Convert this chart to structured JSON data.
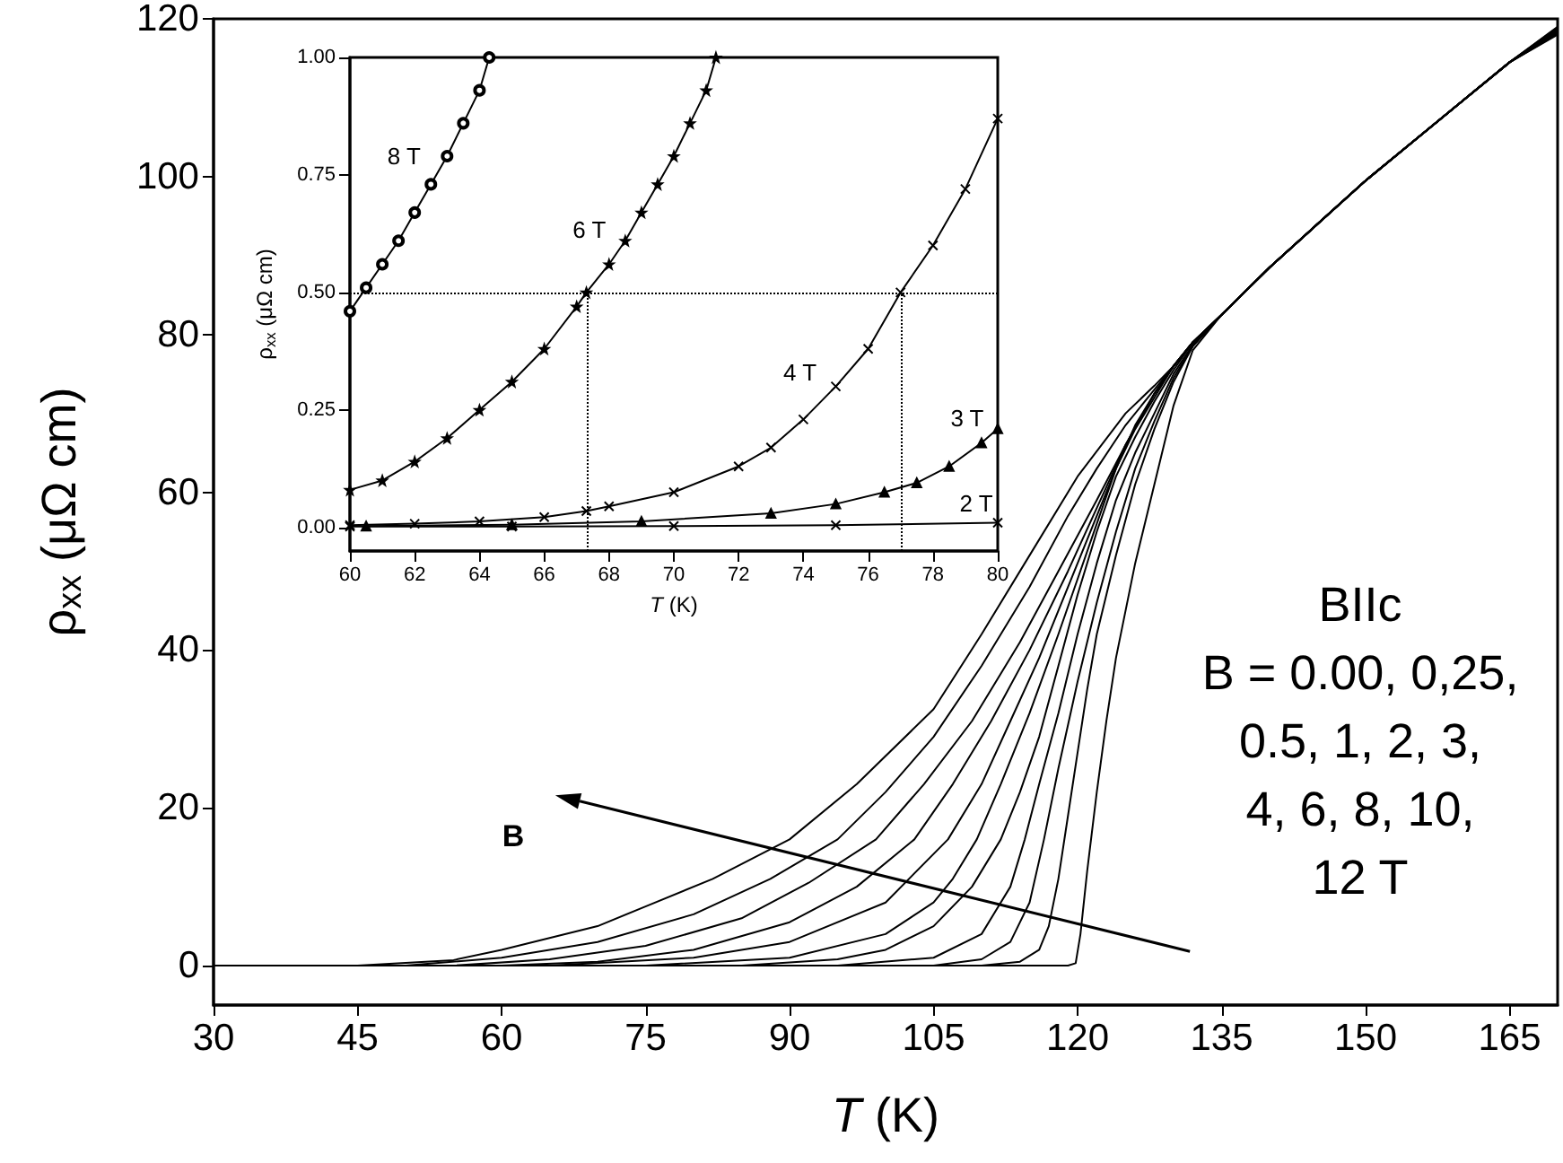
{
  "chart_data": [
    {
      "type": "line",
      "xlabel": "T (K)",
      "ylabel": "ρ$_{xx}$ (μΩ cm)",
      "xlim": [
        30,
        170
      ],
      "ylim": [
        -5,
        120
      ],
      "xticks": [
        30,
        45,
        60,
        75,
        90,
        105,
        120,
        135,
        150,
        165
      ],
      "yticks": [
        0,
        20,
        40,
        60,
        80,
        100,
        120
      ],
      "grid": false,
      "legend": false,
      "marker": "none",
      "line_style": "solid",
      "annotations": [
        "BIIc\nB = 0.00, 0,25,\n0.5, 1, 2, 3,\n4, 6, 8, 10,\n12 T",
        "B"
      ],
      "series": [
        {
          "color": "#000000",
          "x": [
            30,
            119,
            119.8,
            120.3,
            121,
            122,
            123,
            124,
            125,
            126,
            128,
            130,
            132,
            135,
            140,
            145,
            150,
            155,
            160,
            165,
            170
          ],
          "values": [
            0,
            0,
            0.3,
            4,
            12,
            22,
            31,
            39,
            45,
            51,
            61,
            71,
            78,
            82.5,
            88.5,
            94,
            99.5,
            104.5,
            109.5,
            114.5,
            118.5
          ]
        },
        {
          "color": "#000000",
          "x": [
            80,
            110,
            114,
            116,
            117,
            118,
            119,
            120,
            121,
            122,
            124,
            126,
            128,
            130,
            132,
            135,
            140,
            145,
            150,
            155,
            160,
            165,
            170
          ],
          "values": [
            0,
            0,
            0.5,
            2,
            5,
            11,
            19,
            27,
            35,
            42,
            52,
            61,
            68,
            74,
            78.5,
            82.5,
            88.5,
            94,
            99.5,
            104.5,
            109.5,
            114.5,
            118.4
          ]
        },
        {
          "color": "#000000",
          "x": [
            75,
            105,
            110,
            113,
            115,
            116.5,
            118,
            120,
            122,
            124,
            126,
            128,
            130,
            132,
            135,
            140,
            145,
            150,
            155,
            160,
            165,
            170
          ],
          "values": [
            0,
            0,
            0.8,
            3,
            8,
            16,
            25,
            36,
            46,
            55,
            63,
            69,
            74.5,
            78.5,
            82.5,
            88.5,
            94,
            99.5,
            104.5,
            109.5,
            114.5,
            118.3
          ]
        },
        {
          "color": "#000000",
          "x": [
            70,
            95,
            105,
            110,
            113,
            114.5,
            116,
            118,
            120,
            122,
            124,
            126,
            128,
            130,
            132,
            135,
            140,
            145,
            150,
            155,
            160,
            165,
            170
          ],
          "values": [
            0,
            0,
            1,
            4,
            10,
            16,
            23,
            32,
            42,
            51,
            59,
            65,
            70,
            75,
            78.7,
            82.5,
            88.5,
            94,
            99.5,
            104.5,
            109.5,
            114.5,
            118.2
          ]
        },
        {
          "color": "#000000",
          "x": [
            65,
            85,
            95,
            100,
            105,
            109,
            112,
            114,
            116,
            118,
            120,
            122,
            124,
            126,
            128,
            130,
            132,
            135,
            140,
            145,
            150,
            155,
            160,
            165,
            170
          ],
          "values": [
            0,
            0,
            0.8,
            2,
            5,
            10,
            16,
            22,
            29,
            38,
            47,
            55,
            62,
            67,
            71.5,
            75.5,
            79,
            82.5,
            88.5,
            94,
            99.5,
            104.5,
            109.5,
            114.5,
            118.1
          ]
        },
        {
          "color": "#000000",
          "x": [
            60,
            75,
            90,
            100,
            105,
            107,
            109.5,
            112,
            115,
            118,
            120,
            122,
            124,
            126,
            128,
            130,
            132,
            135,
            140,
            145,
            150,
            155,
            160,
            165,
            170
          ],
          "values": [
            0,
            0,
            1,
            4,
            8,
            11,
            16,
            23,
            32,
            42,
            49,
            56,
            63,
            68,
            72,
            76,
            79,
            82.5,
            88.5,
            94,
            99.5,
            104.5,
            109.5,
            114.5,
            118
          ]
        },
        {
          "color": "#000000",
          "x": [
            55,
            65,
            80,
            90,
            100,
            106.5,
            110,
            113,
            116,
            119,
            122,
            124,
            126,
            128,
            130,
            132,
            135,
            140,
            145,
            150,
            155,
            160,
            165,
            170
          ],
          "values": [
            0,
            0,
            1,
            3,
            8,
            16,
            23,
            31,
            39,
            48,
            57,
            63,
            68.5,
            72.5,
            76,
            79,
            82.5,
            88.5,
            94,
            99.5,
            104.5,
            109.5,
            114.5,
            118.6
          ]
        },
        {
          "color": "#000000",
          "x": [
            50,
            60,
            70,
            80,
            90,
            97,
            103,
            107,
            111,
            115,
            119,
            122,
            125,
            128,
            130,
            132,
            135,
            140,
            145,
            150,
            155,
            160,
            165,
            170
          ],
          "values": [
            0,
            0,
            0.5,
            2,
            5.5,
            10,
            16,
            23,
            31,
            40,
            50,
            58,
            66,
            72.5,
            76,
            79,
            82.5,
            88.5,
            94,
            99.5,
            104.5,
            109.5,
            114.5,
            118.7
          ]
        },
        {
          "color": "#000000",
          "x": [
            45,
            55,
            65,
            75,
            85,
            92,
            99,
            104,
            109,
            114,
            118,
            122,
            125,
            128,
            130,
            132,
            135,
            140,
            145,
            150,
            155,
            160,
            165,
            170
          ],
          "values": [
            0,
            0,
            0.8,
            2.5,
            6,
            10.5,
            16,
            23,
            31,
            41,
            50,
            59,
            66,
            72.5,
            76,
            79,
            82.5,
            88.5,
            94,
            99.5,
            104.5,
            109.5,
            114.5,
            118.8
          ]
        },
        {
          "color": "#000000",
          "x": [
            40,
            50,
            60,
            70,
            80,
            88,
            95,
            100,
            105,
            110,
            115,
            119,
            122,
            125,
            128,
            130,
            132,
            135,
            140,
            145,
            150,
            155,
            160,
            165,
            170
          ],
          "values": [
            0,
            0,
            1,
            3,
            6.5,
            11,
            16,
            22,
            29,
            38,
            48,
            57,
            63,
            68.5,
            73,
            76,
            79,
            82.5,
            88.5,
            94,
            99.5,
            104.5,
            109.5,
            114.5,
            118.9
          ]
        },
        {
          "color": "#000000",
          "x": [
            35,
            45,
            55,
            60,
            70,
            75,
            82,
            90,
            97,
            105,
            110,
            115,
            120,
            125,
            128,
            130,
            132,
            135,
            140,
            145,
            150,
            155,
            160,
            165,
            170
          ],
          "values": [
            0,
            0,
            0.7,
            2,
            5,
            7.5,
            11,
            16,
            23,
            32.5,
            42,
            52,
            62,
            70,
            73.5,
            76,
            79,
            82.5,
            88.5,
            94,
            99.5,
            104.5,
            109.5,
            114.5,
            119
          ]
        }
      ]
    },
    {
      "type": "line",
      "xlabel": "T (K)",
      "ylabel": "ρ$_{xx}$ (μΩ cm)",
      "xlim": [
        60,
        80
      ],
      "ylim": [
        -0.05,
        1
      ],
      "xticks": [
        60,
        62,
        64,
        66,
        68,
        70,
        72,
        74,
        76,
        78,
        80
      ],
      "yticks": [
        {
          "value": 0,
          "label": "0.00"
        },
        {
          "value": 0.25,
          "label": "0.25"
        },
        {
          "value": 0.5,
          "label": "0.50"
        },
        {
          "value": 0.75,
          "label": "0.75"
        },
        {
          "value": 1,
          "label": "1.00"
        }
      ],
      "grid": false,
      "legend": false,
      "ref_lines": [
        {
          "axis": "y",
          "value": 0.5,
          "line_style": "dotted"
        },
        {
          "axis": "x",
          "value": 67.3,
          "line_style": "dotted"
        },
        {
          "axis": "x",
          "value": 77,
          "line_style": "dotted"
        }
      ],
      "series": [
        {
          "name": "8 T",
          "color": "#000000",
          "marker": "circle",
          "x": [
            60,
            60.5,
            61,
            61.5,
            62,
            62.5,
            63,
            63.5,
            64,
            64.3
          ],
          "values": [
            0.46,
            0.51,
            0.56,
            0.61,
            0.67,
            0.73,
            0.79,
            0.86,
            0.93,
            1.0
          ]
        },
        {
          "name": "6 T",
          "color": "#000000",
          "marker": "star",
          "x": [
            60,
            61,
            62,
            63,
            64,
            65,
            66,
            67,
            67.3,
            68,
            68.5,
            69,
            69.5,
            70,
            70.5,
            71,
            71.3
          ],
          "values": [
            0.08,
            0.1,
            0.14,
            0.19,
            0.25,
            0.31,
            0.38,
            0.47,
            0.5,
            0.56,
            0.61,
            0.67,
            0.73,
            0.79,
            0.86,
            0.93,
            1.0
          ]
        },
        {
          "name": "4 T",
          "color": "#000000",
          "marker": "cross",
          "x": [
            60,
            62,
            64,
            66,
            67.3,
            68,
            70,
            72,
            73,
            74,
            75,
            76,
            77,
            78,
            79,
            80
          ],
          "values": [
            0.005,
            0.008,
            0.013,
            0.022,
            0.035,
            0.045,
            0.075,
            0.13,
            0.17,
            0.23,
            0.3,
            0.38,
            0.5,
            0.6,
            0.72,
            0.87
          ]
        },
        {
          "name": "3 T",
          "color": "#000000",
          "marker": "triangle",
          "x": [
            60.5,
            65,
            69,
            73,
            75,
            76.5,
            77.5,
            78.5,
            79.5,
            80
          ],
          "values": [
            0.003,
            0.006,
            0.013,
            0.03,
            0.05,
            0.075,
            0.095,
            0.13,
            0.18,
            0.21
          ]
        },
        {
          "name": "2 T",
          "color": "#000000",
          "marker": "cross",
          "x": [
            60,
            65,
            70,
            75,
            80
          ],
          "values": [
            0.002,
            0.002,
            0.003,
            0.005,
            0.01
          ]
        }
      ]
    }
  ]
}
